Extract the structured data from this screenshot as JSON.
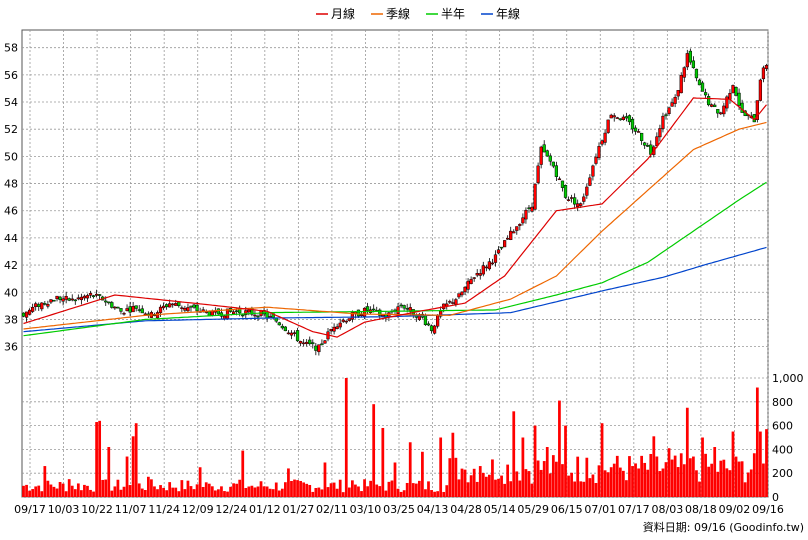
{
  "chart_data": {
    "type": "candlestick-with-volume",
    "legend": [
      {
        "name": "月線",
        "color": "#dd0000"
      },
      {
        "name": "季線",
        "color": "#ee6600"
      },
      {
        "name": "半年",
        "color": "#00cc00"
      },
      {
        "name": "年線",
        "color": "#0044cc"
      }
    ],
    "price_axis": {
      "ticks": [
        "36",
        "38",
        "40",
        "42",
        "44",
        "46",
        "48",
        "50",
        "52",
        "54",
        "56",
        "58"
      ],
      "ylim": [
        34.5,
        59.3
      ]
    },
    "volume_axis": {
      "ticks": [
        "0",
        "200",
        "400",
        "600",
        "800",
        "1,000"
      ],
      "ylim": [
        0,
        1000
      ]
    },
    "x_ticks": [
      "09/17",
      "10/03",
      "10/22",
      "11/07",
      "11/24",
      "12/09",
      "12/24",
      "01/12",
      "01/27",
      "02/11",
      "03/10",
      "03/25",
      "04/13",
      "04/28",
      "05/14",
      "05/29",
      "06/15",
      "07/01",
      "07/17",
      "08/03",
      "08/18",
      "09/02",
      "09/16"
    ],
    "grid": true,
    "source_label": "資料日期: 09/16  (Goodinfo.tw)",
    "n_days": 245,
    "close_anchors": [
      [
        0,
        38.4
      ],
      [
        5,
        39.1
      ],
      [
        11,
        39.6
      ],
      [
        16,
        39.4
      ],
      [
        22,
        39.8
      ],
      [
        26,
        39.5
      ],
      [
        32,
        38.6
      ],
      [
        37,
        38.9
      ],
      [
        42,
        38.3
      ],
      [
        48,
        39.2
      ],
      [
        55,
        38.8
      ],
      [
        62,
        38.4
      ],
      [
        70,
        38.6
      ],
      [
        78,
        38.4
      ],
      [
        83,
        37.9
      ],
      [
        88,
        37.0
      ],
      [
        92,
        36.2
      ],
      [
        97,
        35.9
      ],
      [
        102,
        37.6
      ],
      [
        108,
        38.3
      ],
      [
        113,
        38.7
      ],
      [
        119,
        38.2
      ],
      [
        124,
        39.1
      ],
      [
        131,
        38.1
      ],
      [
        134,
        37.3
      ],
      [
        138,
        38.9
      ],
      [
        143,
        39.7
      ],
      [
        148,
        41.2
      ],
      [
        155,
        42.6
      ],
      [
        161,
        44.6
      ],
      [
        167,
        46.5
      ],
      [
        170,
        50.5
      ],
      [
        174,
        49.3
      ],
      [
        178,
        47.1
      ],
      [
        183,
        46.4
      ],
      [
        188,
        50.1
      ],
      [
        193,
        53.2
      ],
      [
        198,
        52.6
      ],
      [
        202,
        51.7
      ],
      [
        206,
        50.3
      ],
      [
        210,
        52.9
      ],
      [
        214,
        54.2
      ],
      [
        218,
        57.5
      ],
      [
        222,
        55.1
      ],
      [
        226,
        53.6
      ],
      [
        229,
        53.2
      ],
      [
        233,
        55.4
      ],
      [
        236,
        53.1
      ],
      [
        240,
        52.7
      ],
      [
        242,
        55.8
      ],
      [
        244,
        56.8
      ]
    ],
    "monthly_ma_anchors": [
      [
        0,
        37.7
      ],
      [
        30,
        39.8
      ],
      [
        60,
        39.1
      ],
      [
        80,
        38.6
      ],
      [
        95,
        37.1
      ],
      [
        103,
        36.7
      ],
      [
        112,
        37.8
      ],
      [
        130,
        38.6
      ],
      [
        145,
        39.2
      ],
      [
        158,
        41.2
      ],
      [
        175,
        46.0
      ],
      [
        190,
        46.5
      ],
      [
        205,
        49.8
      ],
      [
        220,
        54.3
      ],
      [
        232,
        54.2
      ],
      [
        240,
        52.7
      ],
      [
        244,
        53.8
      ]
    ],
    "quarterly_ma_anchors": [
      [
        0,
        37.3
      ],
      [
        40,
        38.3
      ],
      [
        80,
        38.9
      ],
      [
        110,
        38.4
      ],
      [
        140,
        38.3
      ],
      [
        160,
        39.5
      ],
      [
        175,
        41.2
      ],
      [
        190,
        44.5
      ],
      [
        205,
        47.5
      ],
      [
        220,
        50.5
      ],
      [
        235,
        52.0
      ],
      [
        244,
        52.5
      ]
    ],
    "half_year_ma_anchors": [
      [
        0,
        36.8
      ],
      [
        40,
        38.0
      ],
      [
        80,
        38.5
      ],
      [
        120,
        38.6
      ],
      [
        155,
        38.7
      ],
      [
        175,
        39.8
      ],
      [
        190,
        40.7
      ],
      [
        205,
        42.2
      ],
      [
        220,
        44.5
      ],
      [
        235,
        46.8
      ],
      [
        244,
        48.1
      ]
    ],
    "yearly_ma_anchors": [
      [
        0,
        37.1
      ],
      [
        40,
        37.9
      ],
      [
        80,
        38.1
      ],
      [
        120,
        38.2
      ],
      [
        160,
        38.5
      ],
      [
        190,
        40.1
      ],
      [
        210,
        41.1
      ],
      [
        225,
        42.1
      ],
      [
        244,
        43.3
      ]
    ],
    "volume_spikes": [
      [
        7,
        260
      ],
      [
        15,
        150
      ],
      [
        24,
        630
      ],
      [
        25,
        640
      ],
      [
        28,
        420
      ],
      [
        34,
        340
      ],
      [
        36,
        510
      ],
      [
        37,
        620
      ],
      [
        41,
        170
      ],
      [
        58,
        250
      ],
      [
        62,
        90
      ],
      [
        72,
        390
      ],
      [
        76,
        80
      ],
      [
        87,
        240
      ],
      [
        99,
        290
      ],
      [
        106,
        1000
      ],
      [
        108,
        140
      ],
      [
        115,
        780
      ],
      [
        118,
        580
      ],
      [
        122,
        290
      ],
      [
        127,
        460
      ],
      [
        131,
        380
      ],
      [
        137,
        500
      ],
      [
        141,
        540
      ],
      [
        145,
        230
      ],
      [
        150,
        260
      ],
      [
        157,
        180
      ],
      [
        161,
        720
      ],
      [
        164,
        500
      ],
      [
        168,
        600
      ],
      [
        172,
        420
      ],
      [
        176,
        810
      ],
      [
        178,
        600
      ],
      [
        185,
        330
      ],
      [
        190,
        620
      ],
      [
        194,
        280
      ],
      [
        200,
        260
      ],
      [
        207,
        510
      ],
      [
        212,
        410
      ],
      [
        218,
        750
      ],
      [
        220,
        340
      ],
      [
        223,
        500
      ],
      [
        227,
        420
      ],
      [
        233,
        550
      ],
      [
        236,
        300
      ],
      [
        241,
        920
      ],
      [
        242,
        550
      ],
      [
        244,
        570
      ]
    ]
  }
}
